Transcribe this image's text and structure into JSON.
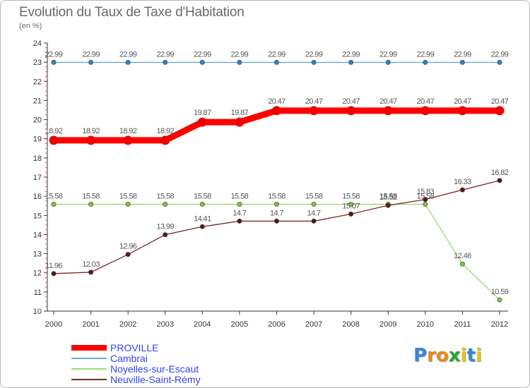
{
  "chart_data": {
    "type": "line",
    "title": "Evolution du Taux de Taxe d'Habitation",
    "subtitle": "(en %)",
    "xlabel": "",
    "ylabel": "",
    "ylim": [
      10,
      24
    ],
    "yticks": [
      "10",
      "11",
      "12",
      "13",
      "14",
      "15",
      "16",
      "17",
      "18",
      "19",
      "20",
      "21",
      "22",
      "23",
      "24"
    ],
    "categories": [
      "2000",
      "2001",
      "2002",
      "2003",
      "2004",
      "2005",
      "2006",
      "2007",
      "2008",
      "2009",
      "2010",
      "2011",
      "2012"
    ],
    "legend_position": "bottom-left",
    "series": [
      {
        "name": "Cambrai",
        "color": "#6fa8d8",
        "point_color": "#2f7fc1",
        "values": [
          22.99,
          22.99,
          22.99,
          22.99,
          22.99,
          22.99,
          22.99,
          22.99,
          22.99,
          22.99,
          22.99,
          22.99,
          22.99
        ],
        "labels": [
          "22.99",
          "22.99",
          "22.99",
          "22.99",
          "22.99",
          "22.99",
          "22.99",
          "22.99",
          "22.99",
          "22.99",
          "22.99",
          "22.99",
          "22.99"
        ]
      },
      {
        "name": "Noyelles-sur-Escaut",
        "color": "#9ddb6a",
        "point_color": "#7cc242",
        "values": [
          15.58,
          15.58,
          15.58,
          15.58,
          15.58,
          15.58,
          15.58,
          15.58,
          15.58,
          15.58,
          15.58,
          12.46,
          10.59
        ],
        "labels": [
          "15.58",
          "15.58",
          "15.58",
          "15.58",
          "15.58",
          "15.58",
          "15.58",
          "15.58",
          "15.58",
          "15.58",
          "15.58",
          "12.46",
          "10.59"
        ]
      },
      {
        "name": "Neuville-Saint-Rémy",
        "color": "#7a2a2a",
        "point_color": "#5a1515",
        "values": [
          11.96,
          12.03,
          12.96,
          13.99,
          14.41,
          14.7,
          14.7,
          14.7,
          15.07,
          15.52,
          15.83,
          16.33,
          16.82
        ],
        "labels": [
          "11.96",
          "12.03",
          "12.96",
          "13.99",
          "14.41",
          "14.7",
          "14.7",
          "14.7",
          "15.07",
          "15.52",
          "15.83",
          "16.33",
          "16.82"
        ]
      },
      {
        "name": "PROVILLE",
        "color": "#ff0000",
        "point_color": "#ee0000",
        "emphasis": true,
        "values": [
          18.92,
          18.92,
          18.92,
          18.92,
          19.87,
          19.87,
          20.47,
          20.47,
          20.47,
          20.47,
          20.47,
          20.47,
          20.47
        ],
        "labels": [
          "18.92",
          "18.92",
          "18.92",
          "18.92",
          "19.87",
          "19.87",
          "20.47",
          "20.47",
          "20.47",
          "20.47",
          "20.47",
          "20.47",
          "20.47"
        ]
      }
    ],
    "legend": [
      {
        "name": "PROVILLE",
        "color": "#ff0000",
        "text_color": "#3344ee"
      },
      {
        "name": "Cambrai",
        "color": "#6fa8d8",
        "text_color": "#3344ee"
      },
      {
        "name": "Noyelles-sur-Escaut",
        "color": "#9ddb6a",
        "text_color": "#3344ee"
      },
      {
        "name": "Neuville-Saint-Rémy",
        "color": "#7a2a2a",
        "text_color": "#3344ee"
      }
    ]
  },
  "brand": {
    "letters": [
      "P",
      "r",
      "o",
      "x",
      "i",
      "t",
      "i"
    ],
    "colors": [
      "#3a86d6",
      "#e88a1a",
      "#e88a1a",
      "#2aa52a",
      "#e8c41a",
      "#3a86d6",
      "#e8c41a"
    ]
  }
}
